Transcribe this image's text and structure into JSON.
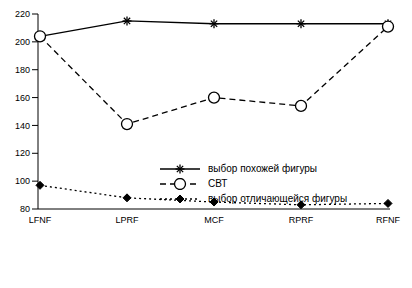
{
  "chart_data": {
    "type": "line",
    "categories": [
      "LFNF",
      "LPRF",
      "MCF",
      "RPRF",
      "RFNF"
    ],
    "series": [
      {
        "name": "выбор похожей фигуры",
        "color": "#000000",
        "marker": "star",
        "line_style": "solid",
        "values": [
          204,
          215,
          213,
          213,
          213
        ]
      },
      {
        "name": "СВТ",
        "color": "#000000",
        "marker": "circle",
        "line_style": "dashed",
        "values": [
          204,
          141,
          160,
          154,
          211
        ]
      },
      {
        "name": "выбор отличающейся фигуры",
        "color": "#000000",
        "marker": "diamond",
        "line_style": "dotted",
        "values": [
          97,
          88,
          85,
          83,
          84
        ]
      }
    ],
    "ylim": [
      80,
      220
    ],
    "yticks": [
      80,
      100,
      120,
      140,
      160,
      180,
      200,
      220
    ],
    "grid": false,
    "legend": "right"
  }
}
